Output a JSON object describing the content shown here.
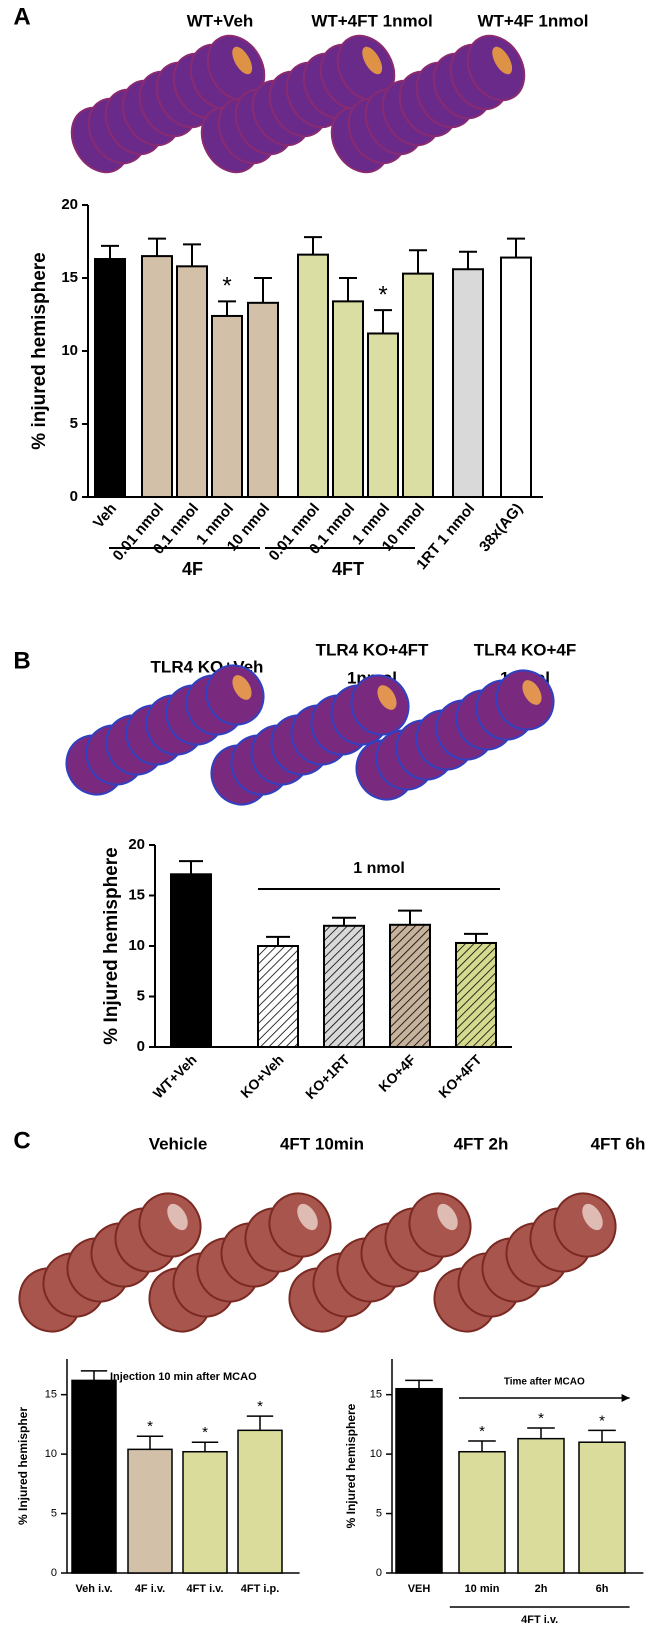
{
  "panel_labels": [
    "A",
    "B",
    "C"
  ],
  "image_captions": [
    [
      [
        "WT+Veh"
      ],
      [
        "WT+4FT 1nmol"
      ],
      [
        "WT+4F 1nmol"
      ]
    ],
    [
      [
        "TLR4 KO+Veh"
      ],
      [
        "TLR4 KO+4FT",
        "1nmol"
      ],
      [
        "TLR4 KO+4F",
        "1nmol"
      ]
    ],
    [
      [
        "Vehicle"
      ],
      [
        "4FT 10min"
      ],
      [
        "4FT 2h"
      ],
      [
        "4FT 6h"
      ]
    ]
  ],
  "chart_data": [
    {
      "type": "bar",
      "ylabel": "% injured hemisphere",
      "categories": [
        "Veh",
        "0.01 nmol",
        "0.1 nmol",
        "1 nmol",
        "10 nmol",
        "0.01 nmol",
        "0.1 nmol",
        "1 nmol",
        "10 nmol",
        "1RT 1 nmol",
        "38x(AG)"
      ],
      "values": [
        16.3,
        16.5,
        15.8,
        12.4,
        13.3,
        16.6,
        13.4,
        11.2,
        15.3,
        15.6,
        16.4
      ],
      "errors": [
        0.9,
        1.2,
        1.5,
        1.0,
        1.7,
        1.2,
        1.6,
        1.6,
        1.6,
        1.2,
        1.3
      ],
      "colors": [
        "#000000",
        "#d3c0a8",
        "#d3c0a8",
        "#d3c0a8",
        "#d3c0a8",
        "#dadea3",
        "#dadea3",
        "#dadea3",
        "#dadea3",
        "#d9d9d9",
        "#ffffff"
      ],
      "significance": [
        null,
        null,
        null,
        "*",
        null,
        null,
        null,
        "*",
        null,
        null,
        null
      ],
      "groups": [
        {
          "label": "4F",
          "color": "#c9b398",
          "from": 1,
          "to": 4
        },
        {
          "label": "4FT",
          "color": "#d2d98a",
          "from": 5,
          "to": 8
        }
      ],
      "ylim": [
        0,
        20
      ],
      "yticks": [
        0,
        5,
        10,
        15,
        20
      ]
    },
    {
      "type": "bar",
      "ylabel": "% Injured hemisphere",
      "categories": [
        "WT+Veh",
        "KO+Veh",
        "KO+1RT",
        "KO+4F",
        "KO+4FT"
      ],
      "values": [
        17.1,
        10.0,
        12.0,
        12.1,
        10.3
      ],
      "errors": [
        1.3,
        0.9,
        0.8,
        1.4,
        0.9
      ],
      "colors": [
        "#000000",
        "#ffffff",
        "#d9d9d9",
        "#c7b29c",
        "#d5da8e"
      ],
      "hatched": [
        false,
        true,
        true,
        true,
        true
      ],
      "bracket": {
        "label": "1 nmol",
        "from": 1,
        "to": 4,
        "arrow": false
      },
      "ylim": [
        0,
        20
      ],
      "yticks": [
        0,
        5,
        10,
        15,
        20
      ]
    },
    {
      "type": "bar",
      "title": "Injection 10 min after MCAO",
      "ylabel": "% Injured hemispher",
      "categories": [
        "Veh i.v.",
        "4F i.v.",
        "4FT i.v.",
        "4FT i.p."
      ],
      "values": [
        16.2,
        10.4,
        10.2,
        12.0
      ],
      "errors": [
        0.8,
        1.1,
        0.8,
        1.2
      ],
      "colors": [
        "#000000",
        "#d3c0a8",
        "#d9dc9a",
        "#d9dc9a"
      ],
      "significance": [
        null,
        "*",
        "*",
        "*"
      ],
      "ylim": [
        0,
        18
      ],
      "yticks": [
        0,
        5,
        10,
        15
      ]
    },
    {
      "type": "bar",
      "ylabel": "% Injured hemisphere",
      "categories": [
        "VEH",
        "10 min",
        "2h",
        "6h"
      ],
      "values": [
        15.5,
        10.2,
        11.3,
        11.0
      ],
      "errors": [
        0.7,
        0.9,
        0.9,
        1.0
      ],
      "colors": [
        "#000000",
        "#d9dc9a",
        "#d9dc9a",
        "#d9dc9a"
      ],
      "significance": [
        null,
        "*",
        "*",
        "*"
      ],
      "bracket": {
        "label": "Time after MCAO",
        "from": 1,
        "to": 3,
        "arrow": true
      },
      "groups": [
        {
          "label": "4FT i.v.",
          "color": "#000000",
          "from": 1,
          "to": 3
        }
      ],
      "ylim": [
        0,
        18
      ],
      "yticks": [
        0,
        5,
        10,
        15
      ]
    }
  ]
}
